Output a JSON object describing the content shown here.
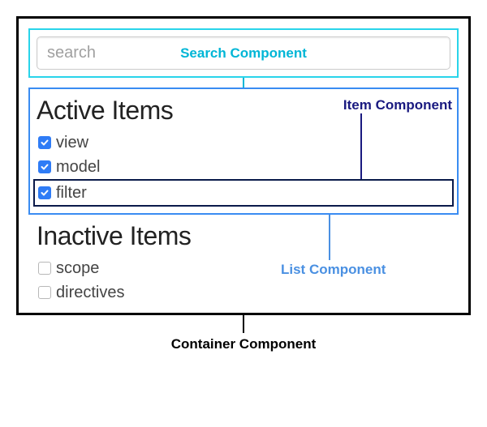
{
  "search": {
    "placeholder": "search",
    "callout_label": "Search Component",
    "border_color": "#29d4ea",
    "label_color": "#00b6d6"
  },
  "list": {
    "callout_label": "List Component",
    "border_color": "#3a8cf2",
    "label_color": "#4a90e2",
    "active_title": "Active Items",
    "inactive_title": "Inactive Items",
    "active_items": [
      {
        "label": "view",
        "checked": true,
        "highlight": false
      },
      {
        "label": "model",
        "checked": true,
        "highlight": false
      },
      {
        "label": "filter",
        "checked": true,
        "highlight": true
      }
    ],
    "inactive_items": [
      {
        "label": "scope",
        "checked": false
      },
      {
        "label": "directives",
        "checked": false
      }
    ]
  },
  "item": {
    "callout_label": "Item Component",
    "border_color": "#0a1a4a",
    "label_color": "#1a1a80"
  },
  "container": {
    "callout_label": "Container Component",
    "border_color": "#000000",
    "label_color": "#000000"
  },
  "checkbox": {
    "on_bg": "#2f7cf6",
    "tick": "#ffffff"
  }
}
